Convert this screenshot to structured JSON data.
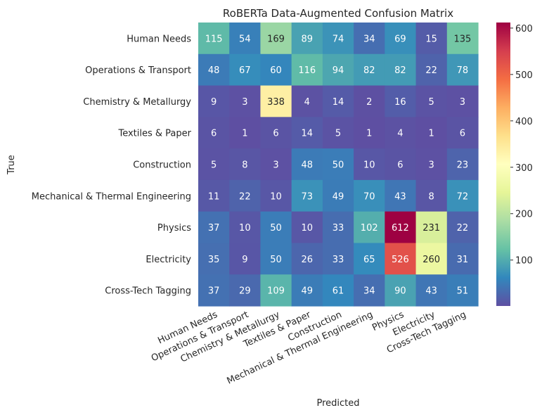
{
  "chart_data": {
    "type": "heatmap",
    "title": "RoBERTa Data-Augmented Confusion Matrix",
    "xlabel": "Predicted",
    "ylabel": "True",
    "categories": [
      "Human Needs",
      "Operations & Transport",
      "Chemistry & Metallurgy",
      "Textiles & Paper",
      "Construction",
      "Mechanical & Thermal Engineering",
      "Physics",
      "Electricity",
      "Cross-Tech Tagging"
    ],
    "matrix": [
      [
        115,
        54,
        169,
        89,
        74,
        34,
        69,
        15,
        135
      ],
      [
        48,
        67,
        60,
        116,
        94,
        82,
        82,
        22,
        78
      ],
      [
        9,
        3,
        338,
        4,
        14,
        2,
        16,
        5,
        3
      ],
      [
        6,
        1,
        6,
        14,
        5,
        1,
        4,
        1,
        6
      ],
      [
        5,
        8,
        3,
        48,
        50,
        10,
        6,
        3,
        23
      ],
      [
        11,
        22,
        10,
        73,
        49,
        70,
        43,
        8,
        72
      ],
      [
        37,
        10,
        50,
        10,
        33,
        102,
        612,
        231,
        22
      ],
      [
        35,
        9,
        50,
        26,
        33,
        65,
        526,
        260,
        31
      ],
      [
        37,
        29,
        109,
        49,
        61,
        34,
        90,
        43,
        51
      ]
    ],
    "colormap": "Spectral_r",
    "vmin": 1,
    "vmax": 612,
    "colorbar_ticks": [
      100,
      200,
      300,
      400,
      500,
      600
    ]
  }
}
